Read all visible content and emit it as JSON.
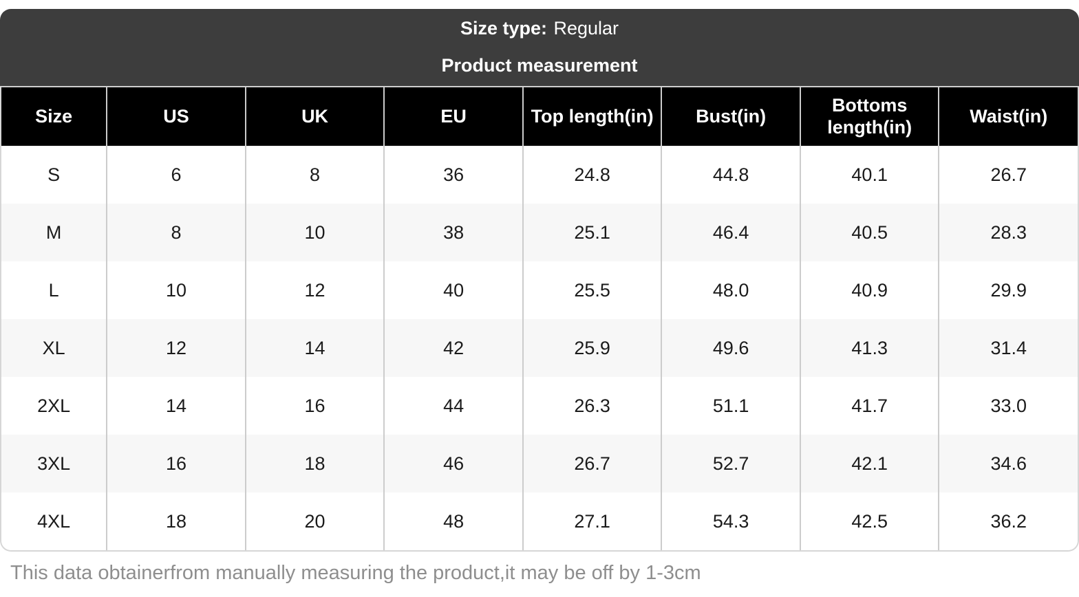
{
  "banner": {
    "size_type_label": "Size type:",
    "size_type_value": "Regular",
    "subtitle": "Product measurement"
  },
  "table": {
    "columns": [
      "Size",
      "US",
      "UK",
      "EU",
      "Top length(in)",
      "Bust(in)",
      "Bottoms length(in)",
      "Waist(in)"
    ],
    "rows": [
      [
        "S",
        "6",
        "8",
        "36",
        "24.8",
        "44.8",
        "40.1",
        "26.7"
      ],
      [
        "M",
        "8",
        "10",
        "38",
        "25.1",
        "46.4",
        "40.5",
        "28.3"
      ],
      [
        "L",
        "10",
        "12",
        "40",
        "25.5",
        "48.0",
        "40.9",
        "29.9"
      ],
      [
        "XL",
        "12",
        "14",
        "42",
        "25.9",
        "49.6",
        "41.3",
        "31.4"
      ],
      [
        "2XL",
        "14",
        "16",
        "44",
        "26.3",
        "51.1",
        "41.7",
        "33.0"
      ],
      [
        "3XL",
        "16",
        "18",
        "46",
        "26.7",
        "52.7",
        "42.1",
        "34.6"
      ],
      [
        "4XL",
        "18",
        "20",
        "48",
        "27.1",
        "54.3",
        "42.5",
        "36.2"
      ]
    ]
  },
  "footer": {
    "note": "This data obtainerfrom manually measuring the product,it may be off by 1-3cm"
  },
  "colors": {
    "banner_bg": "#3d3d3d",
    "header_bg": "#000000",
    "alt_row_bg": "#f7f7f7",
    "column_divider": "#cccccc",
    "footer_text": "#8e8e8e"
  },
  "chart_data": {
    "type": "table",
    "title": "Product measurement",
    "size_type": "Regular",
    "columns": [
      "Size",
      "US",
      "UK",
      "EU",
      "Top length(in)",
      "Bust(in)",
      "Bottoms length(in)",
      "Waist(in)"
    ],
    "rows": [
      [
        "S",
        6,
        8,
        36,
        24.8,
        44.8,
        40.1,
        26.7
      ],
      [
        "M",
        8,
        10,
        38,
        25.1,
        46.4,
        40.5,
        28.3
      ],
      [
        "L",
        10,
        12,
        40,
        25.5,
        48.0,
        40.9,
        29.9
      ],
      [
        "XL",
        12,
        14,
        42,
        25.9,
        49.6,
        41.3,
        31.4
      ],
      [
        "2XL",
        14,
        16,
        44,
        26.3,
        51.1,
        41.7,
        33.0
      ],
      [
        "3XL",
        16,
        18,
        46,
        26.7,
        52.7,
        42.1,
        34.6
      ],
      [
        "4XL",
        18,
        20,
        48,
        27.1,
        54.3,
        42.5,
        36.2
      ]
    ],
    "note": "This data obtainerfrom manually measuring the product,it may be off by 1-3cm"
  }
}
